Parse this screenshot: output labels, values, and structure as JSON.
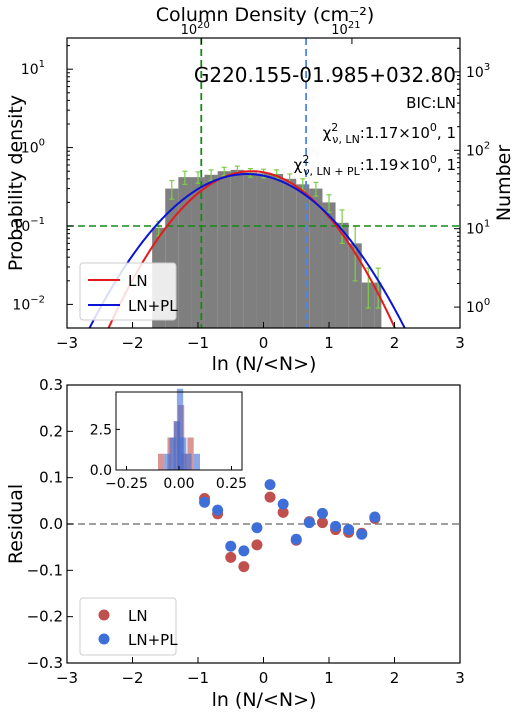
{
  "chart_data": [
    {
      "type": "bar",
      "title": "",
      "top_axis": {
        "label": "Column Density (cm⁻²)",
        "ticks": [
          {
            "x": -0.95,
            "label": "10",
            "exp": "20"
          },
          {
            "x": 1.35,
            "label": "10",
            "exp": "21"
          }
        ]
      },
      "annotation": {
        "name": "G220.155-01.985+032.80",
        "bic": "BIC:LN",
        "chi_ln_sub": "ν, LN",
        "chi_ln_val": ":1.17×10",
        "chi_ln_exp": "0",
        "chi_ln_tail": ", 1",
        "chi_pl_sub": "ν, LN + PL",
        "chi_pl_val": ":1.19×10",
        "chi_pl_exp": "0",
        "chi_pl_tail": ", 1",
        "chi_symbol": "χ",
        "chi_sup": "2"
      },
      "xlabel": "ln (N/<N>)",
      "ylabel": "Probability density",
      "y2label": "Number",
      "xlim": [
        -3,
        3
      ],
      "ylim": [
        0.005,
        25
      ],
      "log_y": true,
      "x_ticks": [
        "−3",
        "−2",
        "−1",
        "0",
        "1",
        "2",
        "3"
      ],
      "y_ticks": [
        {
          "v": 0.01,
          "b": "10",
          "e": "−2"
        },
        {
          "v": 0.1,
          "b": "10",
          "e": "−1"
        },
        {
          "v": 1,
          "b": "10",
          "e": "0"
        },
        {
          "v": 10,
          "b": "10",
          "e": "1"
        }
      ],
      "y2_ticks": [
        {
          "v": 0.00924,
          "b": "10",
          "e": "0"
        },
        {
          "v": 0.0924,
          "b": "10",
          "e": "1"
        },
        {
          "v": 0.924,
          "b": "10",
          "e": "2"
        },
        {
          "v": 9.24,
          "b": "10",
          "e": "3"
        }
      ],
      "histogram": {
        "bin_edges": [
          -1.7,
          -1.5,
          -1.3,
          -1.1,
          -0.9,
          -0.7,
          -0.5,
          -0.3,
          -0.1,
          0.1,
          0.3,
          0.5,
          0.7,
          0.9,
          1.1,
          1.3,
          1.5,
          1.7,
          1.8
        ],
        "values": [
          0.095,
          0.3,
          0.42,
          0.42,
          0.45,
          0.5,
          0.52,
          0.48,
          0.47,
          0.46,
          0.4,
          0.34,
          0.3,
          0.2,
          0.11,
          0.06,
          0.019,
          0.019
        ],
        "errors": [
          0.02,
          0.08,
          0.08,
          0.07,
          0.07,
          0.06,
          0.06,
          0.06,
          0.06,
          0.06,
          0.06,
          0.06,
          0.06,
          0.05,
          0.05,
          0.04,
          0.01,
          0.01
        ],
        "color": "#7f7f7f",
        "error_color": "#7ccd48"
      },
      "series": [
        {
          "name": "LN",
          "color": "#e41a1c",
          "mu": -0.18,
          "sigma": 0.72,
          "amp": 0.5
        },
        {
          "name": "LN+PL",
          "color": "#0a14d6",
          "mu": -0.25,
          "sigma": 0.8,
          "amp": 0.46
        }
      ],
      "hlines": [
        {
          "y": 0.1,
          "color": "#168a16",
          "style": "dashed"
        }
      ],
      "vlines": [
        {
          "x": -0.95,
          "color": "#168a16",
          "style": "dashed"
        },
        {
          "x": 0.65,
          "color": "#4f86e8",
          "style": "dashed"
        }
      ],
      "legend": {
        "placement": "lower-left",
        "entries": [
          "LN",
          "LN+PL"
        ]
      }
    },
    {
      "type": "scatter",
      "title": "",
      "xlabel": "ln (N/<N>)",
      "ylabel": "Residual",
      "xlim": [
        -3,
        3
      ],
      "ylim": [
        -0.3,
        0.3
      ],
      "x_ticks": [
        "−3",
        "−2",
        "−1",
        "0",
        "1",
        "2",
        "3"
      ],
      "y_ticks": [
        "−0.3",
        "−0.2",
        "−0.1",
        "0.0",
        "0.1",
        "0.2",
        "0.3"
      ],
      "hline": {
        "y": 0,
        "color": "#808080",
        "style": "dashed"
      },
      "series": [
        {
          "name": "LN",
          "color": "#c0504d",
          "x": [
            -0.9,
            -0.7,
            -0.5,
            -0.3,
            -0.1,
            0.1,
            0.3,
            0.5,
            0.7,
            0.9,
            1.1,
            1.3,
            1.5,
            1.7
          ],
          "y": [
            0.055,
            0.022,
            -0.072,
            -0.092,
            -0.045,
            0.058,
            0.025,
            -0.035,
            0.005,
            0.003,
            -0.012,
            -0.018,
            -0.02,
            0.012
          ]
        },
        {
          "name": "LN+PL",
          "color": "#3e6fd8",
          "x": [
            -0.9,
            -0.7,
            -0.5,
            -0.3,
            -0.1,
            0.1,
            0.3,
            0.5,
            0.7,
            0.9,
            1.1,
            1.3,
            1.5,
            1.7
          ],
          "y": [
            0.047,
            0.03,
            -0.048,
            -0.058,
            -0.008,
            0.085,
            0.043,
            -0.033,
            0.003,
            0.023,
            -0.005,
            -0.012,
            -0.022,
            0.015
          ]
        }
      ],
      "legend": {
        "placement": "lower-left",
        "entries": [
          "LN",
          "LN+PL"
        ]
      },
      "inset": {
        "type": "histogram",
        "xlim": [
          -0.3,
          0.3
        ],
        "ylim": [
          0,
          4.8
        ],
        "x_ticks": [
          "−0.25",
          "0.00",
          "0.25"
        ],
        "y_ticks": [
          "0.0",
          "2.5"
        ],
        "series": [
          {
            "name": "LN",
            "color": "#c0504d",
            "bin_centers": [
              -0.085,
              -0.04,
              -0.01,
              0.01,
              0.025,
              0.055
            ],
            "counts": [
              1,
              2,
              3,
              4,
              1,
              2
            ]
          },
          {
            "name": "LN+PL",
            "color": "#3e6fd8",
            "bin_centers": [
              -0.055,
              -0.03,
              -0.01,
              0.005,
              0.02,
              0.045,
              0.085
            ],
            "counts": [
              1,
              2,
              3,
              5,
              2,
              1,
              1
            ]
          }
        ]
      }
    }
  ]
}
